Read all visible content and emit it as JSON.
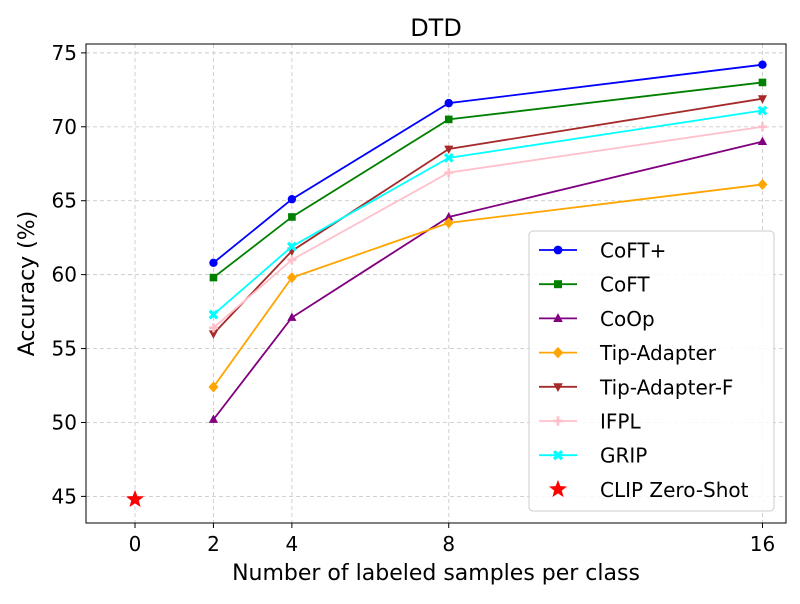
{
  "chart_data": {
    "type": "line",
    "title": "DTD",
    "xlabel": "Number of labeled samples per class",
    "ylabel": "Accuracy (%)",
    "xlim": [
      -1.25,
      16.6
    ],
    "ylim": [
      43.2,
      75.6
    ],
    "x_ticks": [
      0,
      2,
      4,
      8,
      16
    ],
    "x_tick_labels": [
      "0",
      "2",
      "4",
      "8",
      "16"
    ],
    "y_ticks": [
      45,
      50,
      55,
      60,
      65,
      70,
      75
    ],
    "y_tick_labels": [
      "45",
      "50",
      "55",
      "60",
      "65",
      "70",
      "75"
    ],
    "grid": true,
    "legend_position": "lower-right",
    "series": [
      {
        "name": "CoFT+",
        "color": "#0000ff",
        "marker": "circle",
        "x": [
          2,
          4,
          8,
          16
        ],
        "y": [
          60.8,
          65.1,
          71.6,
          74.2
        ]
      },
      {
        "name": "CoFT",
        "color": "#008000",
        "marker": "square",
        "x": [
          2,
          4,
          8,
          16
        ],
        "y": [
          59.8,
          63.9,
          70.5,
          73.0
        ]
      },
      {
        "name": "CoOp",
        "color": "#800080",
        "marker": "triangle-up",
        "x": [
          2,
          4,
          8,
          16
        ],
        "y": [
          50.2,
          57.1,
          63.9,
          69.0
        ]
      },
      {
        "name": "Tip-Adapter",
        "color": "#ffa500",
        "marker": "diamond",
        "x": [
          2,
          4,
          8,
          16
        ],
        "y": [
          52.4,
          59.8,
          63.5,
          66.1
        ]
      },
      {
        "name": "Tip-Adapter-F",
        "color": "#a52a2a",
        "marker": "triangle-down",
        "x": [
          2,
          4,
          8,
          16
        ],
        "y": [
          56.0,
          61.6,
          68.5,
          71.9
        ]
      },
      {
        "name": "IFPL",
        "color": "#ffc0cb",
        "marker": "plus",
        "x": [
          2,
          4,
          8,
          16
        ],
        "y": [
          56.4,
          61.0,
          66.9,
          70.0
        ]
      },
      {
        "name": "GRIP",
        "color": "#00ffff",
        "marker": "x",
        "x": [
          2,
          4,
          8,
          16
        ],
        "y": [
          57.3,
          61.9,
          67.9,
          71.1
        ]
      },
      {
        "name": "CLIP Zero-Shot",
        "color": "#ff0000",
        "marker": "star",
        "x": [
          0
        ],
        "y": [
          44.8
        ]
      }
    ]
  }
}
